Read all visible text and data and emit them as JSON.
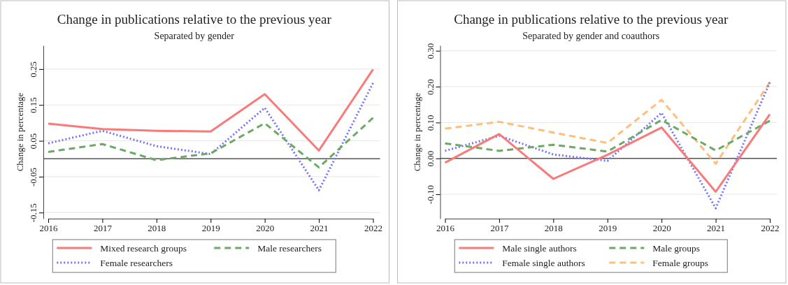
{
  "chart_data": [
    {
      "type": "line",
      "title": "Change in publications relative to the previous year",
      "subtitle": "Separated by gender",
      "ylabel": "Change in percentage",
      "categories": [
        "2016",
        "2017",
        "2018",
        "2019",
        "2020",
        "2021",
        "2022"
      ],
      "ylim": [
        -0.167,
        0.316
      ],
      "yticks": [
        {
          "value": -0.15,
          "label": "-0.15"
        },
        {
          "value": -0.05,
          "label": "-0.05"
        },
        {
          "value": 0.05,
          "label": "0.05"
        },
        {
          "value": 0.15,
          "label": "0.15"
        },
        {
          "value": 0.25,
          "label": "0.25"
        }
      ],
      "grid": "y",
      "legend": "bottom",
      "ref_lines": [
        {
          "axis": "y",
          "value": 0,
          "color": "#555555"
        }
      ],
      "series": [
        {
          "name": "Mixed research groups",
          "color": "#f87a7a",
          "line_style": "solid",
          "values": [
            0.098,
            0.083,
            0.078,
            0.076,
            0.18,
            0.023,
            0.249
          ]
        },
        {
          "name": "Male researchers",
          "color": "#6aaa64",
          "line_style": "dashed",
          "values": [
            0.019,
            0.041,
            -0.004,
            0.015,
            0.099,
            -0.024,
            0.114
          ]
        },
        {
          "name": "Female researchers",
          "color": "#7373ff",
          "line_style": "dotted",
          "values": [
            0.043,
            0.078,
            0.035,
            0.013,
            0.142,
            -0.088,
            0.211
          ]
        }
      ]
    },
    {
      "type": "line",
      "title": "Change in publications relative to the previous year",
      "subtitle": "Separated by gender and coauthors",
      "ylabel": "Change in percentage",
      "categories": [
        "2016",
        "2017",
        "2018",
        "2019",
        "2020",
        "2021",
        "2022"
      ],
      "ylim": [
        -0.168,
        0.315
      ],
      "yticks": [
        {
          "value": -0.1,
          "label": "-0.10"
        },
        {
          "value": 0,
          "label": "0.00"
        },
        {
          "value": 0.1,
          "label": "0.10"
        },
        {
          "value": 0.2,
          "label": "0.20"
        },
        {
          "value": 0.3,
          "label": "0.30"
        }
      ],
      "grid": "y",
      "legend": "bottom",
      "ref_lines": [
        {
          "axis": "y",
          "value": 0,
          "color": "#555555"
        }
      ],
      "series": [
        {
          "name": "Male single authors",
          "color": "#f87a7a",
          "line_style": "solid",
          "values": [
            -0.012,
            0.068,
            -0.057,
            0.01,
            0.086,
            -0.093,
            0.123
          ]
        },
        {
          "name": "Male groups",
          "color": "#6aaa64",
          "line_style": "dashed",
          "values": [
            0.042,
            0.021,
            0.038,
            0.019,
            0.107,
            0.022,
            0.105
          ]
        },
        {
          "name": "Female single authors",
          "color": "#7373ff",
          "line_style": "dotted",
          "values": [
            0.021,
            0.063,
            0.011,
            -0.007,
            0.127,
            -0.139,
            0.212
          ]
        },
        {
          "name": "Female groups",
          "color": "#ffbe7d",
          "line_style": "dashed",
          "values": [
            0.083,
            0.102,
            0.072,
            0.043,
            0.163,
            -0.015,
            0.212
          ]
        }
      ]
    }
  ]
}
